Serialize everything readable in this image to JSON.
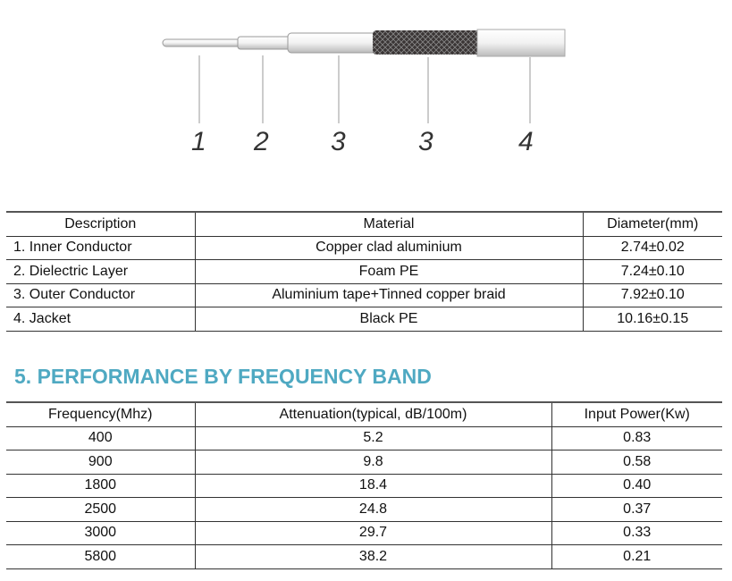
{
  "diagram": {
    "labels": [
      "1",
      "2",
      "3",
      "3",
      "4"
    ]
  },
  "components_table": {
    "headers": [
      "Description",
      "Material",
      "Diameter(mm)"
    ],
    "rows": [
      [
        "1.  Inner Conductor",
        "Copper clad aluminium",
        "2.74±0.02"
      ],
      [
        "2.  Dielectric Layer",
        "Foam PE",
        "7.24±0.10"
      ],
      [
        "3.  Outer Conductor",
        "Aluminium tape+Tinned copper braid",
        "7.92±0.10"
      ],
      [
        "4.  Jacket",
        "Black PE",
        "10.16±0.15"
      ]
    ]
  },
  "section_title": "5.  PERFORMANCE BY FREQUENCY BAND",
  "performance_table": {
    "headers": [
      "Frequency(Mhz)",
      "Attenuation(typical, dB/100m)",
      "Input Power(Kw)"
    ],
    "rows": [
      [
        "400",
        "5.2",
        "0.83"
      ],
      [
        "900",
        "9.8",
        "0.58"
      ],
      [
        "1800",
        "18.4",
        "0.40"
      ],
      [
        "2500",
        "24.8",
        "0.37"
      ],
      [
        "3000",
        "29.7",
        "0.33"
      ],
      [
        "5800",
        "38.2",
        "0.21"
      ]
    ]
  },
  "colors": {
    "heading": "#4fa9c2"
  }
}
